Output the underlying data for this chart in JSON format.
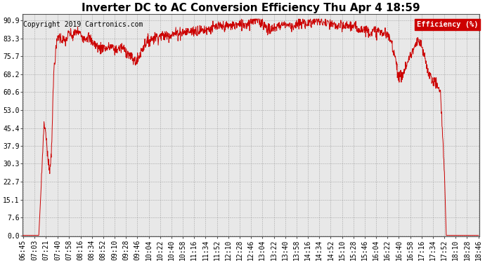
{
  "title": "Inverter DC to AC Conversion Efficiency Thu Apr 4 18:59",
  "copyright": "Copyright 2019 Cartronics.com",
  "legend_label": "Efficiency (%)",
  "legend_bg": "#cc0000",
  "legend_text_color": "#ffffff",
  "line_color": "#cc0000",
  "bg_color": "#ffffff",
  "plot_bg_color": "#e8e8e8",
  "grid_color": "#999999",
  "yticks": [
    0.0,
    7.6,
    15.1,
    22.7,
    30.3,
    37.9,
    45.4,
    53.0,
    60.6,
    68.2,
    75.7,
    83.3,
    90.9
  ],
  "xtick_labels": [
    "06:45",
    "07:03",
    "07:21",
    "07:40",
    "07:58",
    "08:16",
    "08:34",
    "08:52",
    "09:10",
    "09:28",
    "09:46",
    "10:04",
    "10:22",
    "10:40",
    "10:58",
    "11:16",
    "11:34",
    "11:52",
    "12:10",
    "12:28",
    "12:46",
    "13:04",
    "13:22",
    "13:40",
    "13:58",
    "14:16",
    "14:34",
    "14:52",
    "15:10",
    "15:28",
    "15:46",
    "16:04",
    "16:22",
    "16:40",
    "16:58",
    "17:16",
    "17:34",
    "17:52",
    "18:10",
    "18:28",
    "18:46"
  ],
  "ylim": [
    0.0,
    90.9
  ],
  "title_fontsize": 11,
  "copyright_fontsize": 7,
  "tick_fontsize": 7
}
